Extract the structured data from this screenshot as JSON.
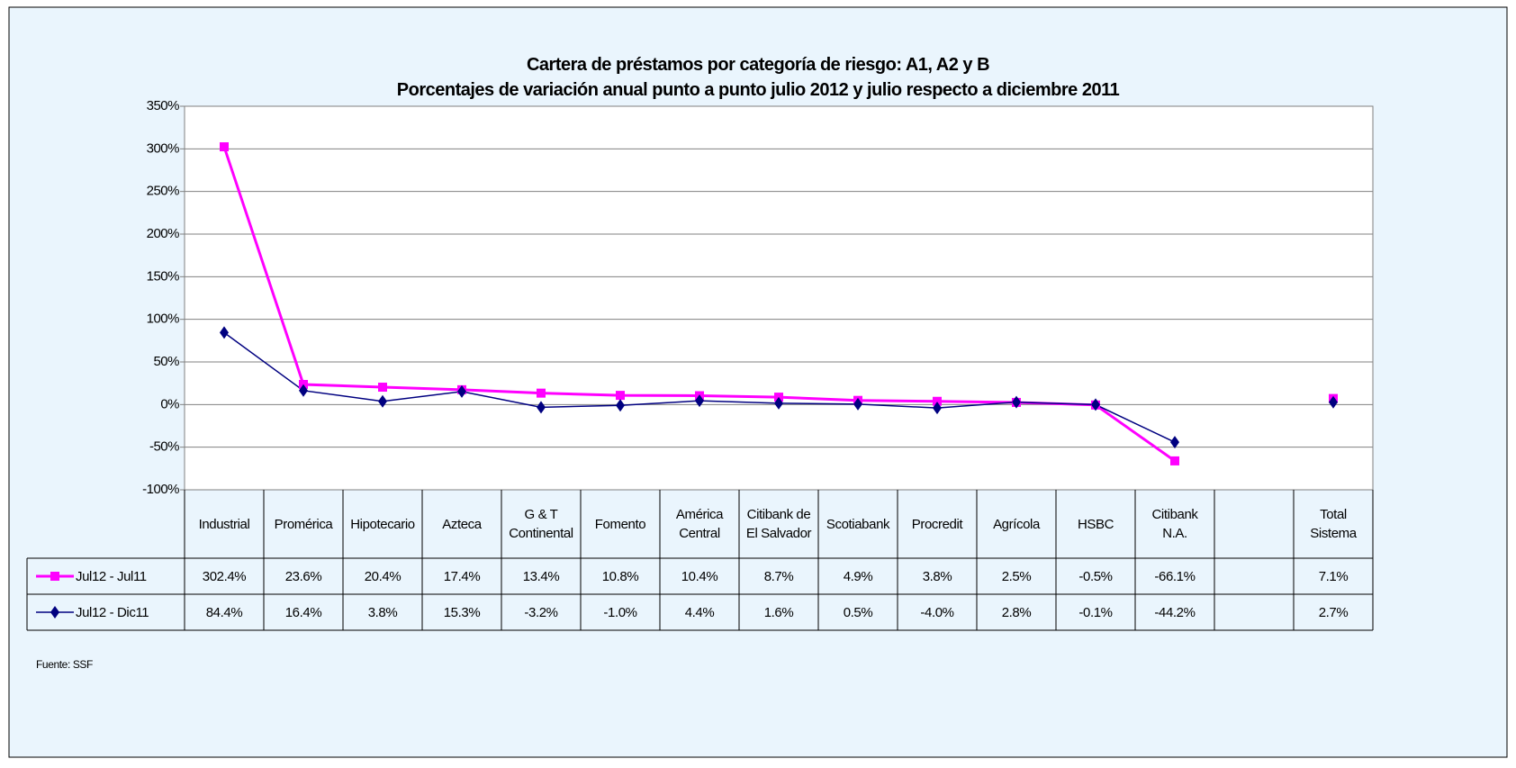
{
  "chart_data": {
    "type": "line",
    "title": "Cartera de préstamos por categoría de riesgo: A1, A2 y B",
    "subtitle": "Porcentajes de variación anual punto a punto julio 2012 y julio respecto a diciembre 2011",
    "categories": [
      "Industrial",
      "Promérica",
      "Hipotecario",
      "Azteca",
      "G & T\nContinental",
      "Fomento",
      "América\nCentral",
      "Citibank de\nEl Salvador",
      "Scotiabank",
      "Procredit",
      "Agrícola",
      "HSBC",
      "Citibank\nN.A.",
      null,
      "Total\nSistema"
    ],
    "series": [
      {
        "name": "Jul12 - Jul11",
        "color": "#ff00ff",
        "marker": "square",
        "values": [
          302.4,
          23.6,
          20.4,
          17.4,
          13.4,
          10.8,
          10.4,
          8.7,
          4.9,
          3.8,
          2.5,
          -0.5,
          -66.1,
          null,
          7.1
        ],
        "value_labels": [
          "302.4%",
          "23.6%",
          "20.4%",
          "17.4%",
          "13.4%",
          "10.8%",
          "10.4%",
          "8.7%",
          "4.9%",
          "3.8%",
          "2.5%",
          "-0.5%",
          "-66.1%",
          null,
          "7.1%"
        ]
      },
      {
        "name": "Jul12 - Dic11",
        "color": "#000080",
        "marker": "diamond",
        "values": [
          84.4,
          16.4,
          3.8,
          15.3,
          -3.2,
          -1.0,
          4.4,
          1.6,
          0.5,
          -4.0,
          2.8,
          -0.1,
          -44.2,
          null,
          2.7
        ],
        "value_labels": [
          "84.4%",
          "16.4%",
          "3.8%",
          "15.3%",
          "-3.2%",
          "-1.0%",
          "4.4%",
          "1.6%",
          "0.5%",
          "-4.0%",
          "2.8%",
          "-0.1%",
          "-44.2%",
          null,
          "2.7%"
        ]
      }
    ],
    "ylim": [
      -100,
      350
    ],
    "yticks": [
      {
        "value": -100,
        "label": "-100%"
      },
      {
        "value": -50,
        "label": "-50%"
      },
      {
        "value": 0,
        "label": "0%"
      },
      {
        "value": 50,
        "label": "50%"
      },
      {
        "value": 100,
        "label": "100%"
      },
      {
        "value": 150,
        "label": "150%"
      },
      {
        "value": 200,
        "label": "200%"
      },
      {
        "value": 250,
        "label": "250%"
      },
      {
        "value": 300,
        "label": "300%"
      },
      {
        "value": 350,
        "label": "350%"
      }
    ],
    "grid": true,
    "source": "Fuente: SSF"
  }
}
